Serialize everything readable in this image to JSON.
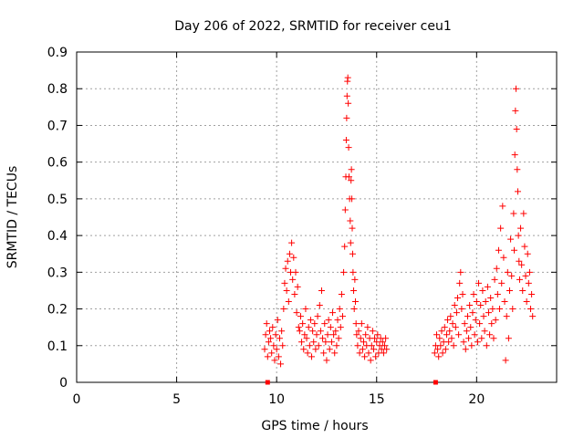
{
  "chart_data": {
    "type": "scatter",
    "title": "Day 206 of 2022, SRMTID for receiver ceu1",
    "xlabel": "GPS time / hours",
    "ylabel": "SRMTID / TECUs",
    "xlim": [
      0,
      24
    ],
    "ylim": [
      0,
      0.9
    ],
    "xticks": [
      "0",
      "5",
      "10",
      "15",
      "20"
    ],
    "yticks": [
      "0",
      "0.1",
      "0.2",
      "0.3",
      "0.4",
      "0.5",
      "0.6",
      "0.7",
      "0.8",
      "0.9"
    ],
    "grid": true,
    "marker_color": "#ff0000",
    "axis_markers": [
      {
        "x": 9.55,
        "y": 0
      },
      {
        "x": 17.95,
        "y": 0
      }
    ],
    "series": [
      {
        "name": "SRMTID",
        "marker": "plus",
        "points": [
          [
            9.4,
            0.09
          ],
          [
            9.45,
            0.13
          ],
          [
            9.5,
            0.16
          ],
          [
            9.55,
            0.07
          ],
          [
            9.6,
            0.11
          ],
          [
            9.65,
            0.14
          ],
          [
            9.7,
            0.12
          ],
          [
            9.75,
            0.08
          ],
          [
            9.8,
            0.15
          ],
          [
            9.85,
            0.1
          ],
          [
            9.9,
            0.06
          ],
          [
            9.95,
            0.13
          ],
          [
            10.0,
            0.09
          ],
          [
            10.05,
            0.17
          ],
          [
            10.1,
            0.07
          ],
          [
            10.15,
            0.12
          ],
          [
            10.2,
            0.05
          ],
          [
            10.25,
            0.14
          ],
          [
            10.3,
            0.1
          ],
          [
            10.35,
            0.2
          ],
          [
            10.4,
            0.27
          ],
          [
            10.45,
            0.31
          ],
          [
            10.5,
            0.25
          ],
          [
            10.55,
            0.33
          ],
          [
            10.6,
            0.22
          ],
          [
            10.65,
            0.35
          ],
          [
            10.7,
            0.3
          ],
          [
            10.75,
            0.38
          ],
          [
            10.8,
            0.28
          ],
          [
            10.85,
            0.34
          ],
          [
            10.9,
            0.24
          ],
          [
            10.95,
            0.3
          ],
          [
            11.0,
            0.19
          ],
          [
            11.05,
            0.26
          ],
          [
            11.1,
            0.15
          ],
          [
            11.15,
            0.14
          ],
          [
            11.2,
            0.18
          ],
          [
            11.25,
            0.11
          ],
          [
            11.3,
            0.16
          ],
          [
            11.35,
            0.09
          ],
          [
            11.4,
            0.13
          ],
          [
            11.45,
            0.2
          ],
          [
            11.5,
            0.12
          ],
          [
            11.55,
            0.08
          ],
          [
            11.6,
            0.15
          ],
          [
            11.65,
            0.1
          ],
          [
            11.7,
            0.17
          ],
          [
            11.75,
            0.07
          ],
          [
            11.8,
            0.14
          ],
          [
            11.85,
            0.11
          ],
          [
            11.9,
            0.16
          ],
          [
            11.95,
            0.09
          ],
          [
            12.0,
            0.13
          ],
          [
            12.05,
            0.18
          ],
          [
            12.1,
            0.1
          ],
          [
            12.15,
            0.21
          ],
          [
            12.2,
            0.14
          ],
          [
            12.25,
            0.25
          ],
          [
            12.3,
            0.12
          ],
          [
            12.35,
            0.08
          ],
          [
            12.4,
            0.16
          ],
          [
            12.45,
            0.11
          ],
          [
            12.5,
            0.06
          ],
          [
            12.55,
            0.13
          ],
          [
            12.6,
            0.17
          ],
          [
            12.65,
            0.09
          ],
          [
            12.7,
            0.15
          ],
          [
            12.75,
            0.11
          ],
          [
            12.8,
            0.19
          ],
          [
            12.85,
            0.13
          ],
          [
            12.9,
            0.08
          ],
          [
            12.95,
            0.14
          ],
          [
            13.0,
            0.1
          ],
          [
            13.05,
            0.17
          ],
          [
            13.1,
            0.12
          ],
          [
            13.15,
            0.2
          ],
          [
            13.2,
            0.15
          ],
          [
            13.25,
            0.24
          ],
          [
            13.3,
            0.18
          ],
          [
            13.35,
            0.3
          ],
          [
            13.4,
            0.37
          ],
          [
            13.43,
            0.47
          ],
          [
            13.46,
            0.56
          ],
          [
            13.48,
            0.66
          ],
          [
            13.5,
            0.72
          ],
          [
            13.52,
            0.78
          ],
          [
            13.54,
            0.82
          ],
          [
            13.56,
            0.83
          ],
          [
            13.58,
            0.76
          ],
          [
            13.6,
            0.64
          ],
          [
            13.62,
            0.56
          ],
          [
            13.65,
            0.5
          ],
          [
            13.68,
            0.44
          ],
          [
            13.7,
            0.38
          ],
          [
            13.72,
            0.55
          ],
          [
            13.74,
            0.58
          ],
          [
            13.76,
            0.5
          ],
          [
            13.78,
            0.42
          ],
          [
            13.8,
            0.35
          ],
          [
            13.82,
            0.3
          ],
          [
            13.85,
            0.25
          ],
          [
            13.88,
            0.2
          ],
          [
            13.91,
            0.28
          ],
          [
            13.94,
            0.22
          ],
          [
            13.97,
            0.16
          ],
          [
            14.0,
            0.13
          ],
          [
            14.05,
            0.1
          ],
          [
            14.1,
            0.14
          ],
          [
            14.15,
            0.08
          ],
          [
            14.2,
            0.12
          ],
          [
            14.25,
            0.16
          ],
          [
            14.3,
            0.09
          ],
          [
            14.35,
            0.11
          ],
          [
            14.4,
            0.07
          ],
          [
            14.45,
            0.13
          ],
          [
            14.5,
            0.1
          ],
          [
            14.55,
            0.15
          ],
          [
            14.6,
            0.08
          ],
          [
            14.65,
            0.12
          ],
          [
            14.7,
            0.06
          ],
          [
            14.75,
            0.1
          ],
          [
            14.8,
            0.14
          ],
          [
            14.85,
            0.09
          ],
          [
            14.9,
            0.12
          ],
          [
            14.95,
            0.07
          ],
          [
            15.0,
            0.11
          ],
          [
            15.05,
            0.13
          ],
          [
            15.1,
            0.08
          ],
          [
            15.15,
            0.1
          ],
          [
            15.2,
            0.12
          ],
          [
            15.25,
            0.09
          ],
          [
            15.3,
            0.11
          ],
          [
            15.35,
            0.08
          ],
          [
            15.4,
            0.1
          ],
          [
            15.45,
            0.12
          ],
          [
            15.5,
            0.09
          ],
          [
            17.9,
            0.08
          ],
          [
            17.95,
            0.1
          ],
          [
            18.0,
            0.13
          ],
          [
            18.05,
            0.09
          ],
          [
            18.1,
            0.07
          ],
          [
            18.15,
            0.12
          ],
          [
            18.2,
            0.1
          ],
          [
            18.25,
            0.14
          ],
          [
            18.3,
            0.08
          ],
          [
            18.35,
            0.11
          ],
          [
            18.4,
            0.15
          ],
          [
            18.45,
            0.09
          ],
          [
            18.5,
            0.13
          ],
          [
            18.55,
            0.17
          ],
          [
            18.6,
            0.11
          ],
          [
            18.65,
            0.14
          ],
          [
            18.7,
            0.18
          ],
          [
            18.75,
            0.12
          ],
          [
            18.8,
            0.16
          ],
          [
            18.85,
            0.1
          ],
          [
            18.9,
            0.21
          ],
          [
            18.95,
            0.15
          ],
          [
            19.0,
            0.19
          ],
          [
            19.05,
            0.23
          ],
          [
            19.1,
            0.13
          ],
          [
            19.15,
            0.27
          ],
          [
            19.2,
            0.3
          ],
          [
            19.25,
            0.2
          ],
          [
            19.3,
            0.24
          ],
          [
            19.35,
            0.11
          ],
          [
            19.4,
            0.16
          ],
          [
            19.45,
            0.09
          ],
          [
            19.5,
            0.14
          ],
          [
            19.55,
            0.18
          ],
          [
            19.6,
            0.12
          ],
          [
            19.65,
            0.21
          ],
          [
            19.7,
            0.15
          ],
          [
            19.75,
            0.1
          ],
          [
            19.8,
            0.19
          ],
          [
            19.85,
            0.24
          ],
          [
            19.9,
            0.13
          ],
          [
            19.95,
            0.17
          ],
          [
            20.0,
            0.22
          ],
          [
            20.05,
            0.11
          ],
          [
            20.1,
            0.27
          ],
          [
            20.15,
            0.16
          ],
          [
            20.2,
            0.21
          ],
          [
            20.25,
            0.12
          ],
          [
            20.3,
            0.25
          ],
          [
            20.35,
            0.18
          ],
          [
            20.4,
            0.14
          ],
          [
            20.45,
            0.22
          ],
          [
            20.5,
            0.1
          ],
          [
            20.55,
            0.26
          ],
          [
            20.6,
            0.19
          ],
          [
            20.65,
            0.13
          ],
          [
            20.7,
            0.23
          ],
          [
            20.75,
            0.16
          ],
          [
            20.8,
            0.2
          ],
          [
            20.85,
            0.12
          ],
          [
            20.9,
            0.28
          ],
          [
            20.95,
            0.17
          ],
          [
            21.0,
            0.31
          ],
          [
            21.05,
            0.24
          ],
          [
            21.1,
            0.36
          ],
          [
            21.15,
            0.2
          ],
          [
            21.2,
            0.42
          ],
          [
            21.25,
            0.27
          ],
          [
            21.3,
            0.48
          ],
          [
            21.35,
            0.34
          ],
          [
            21.4,
            0.22
          ],
          [
            21.45,
            0.06
          ],
          [
            21.5,
            0.18
          ],
          [
            21.55,
            0.3
          ],
          [
            21.6,
            0.12
          ],
          [
            21.65,
            0.25
          ],
          [
            21.7,
            0.39
          ],
          [
            21.75,
            0.29
          ],
          [
            21.8,
            0.2
          ],
          [
            21.85,
            0.46
          ],
          [
            21.88,
            0.36
          ],
          [
            21.91,
            0.62
          ],
          [
            21.94,
            0.74
          ],
          [
            21.97,
            0.8
          ],
          [
            22.0,
            0.69
          ],
          [
            22.03,
            0.58
          ],
          [
            22.06,
            0.52
          ],
          [
            22.09,
            0.4
          ],
          [
            22.12,
            0.33
          ],
          [
            22.15,
            0.28
          ],
          [
            22.2,
            0.42
          ],
          [
            22.25,
            0.32
          ],
          [
            22.3,
            0.25
          ],
          [
            22.35,
            0.46
          ],
          [
            22.4,
            0.37
          ],
          [
            22.45,
            0.29
          ],
          [
            22.5,
            0.22
          ],
          [
            22.55,
            0.35
          ],
          [
            22.6,
            0.27
          ],
          [
            22.65,
            0.3
          ],
          [
            22.7,
            0.2
          ],
          [
            22.75,
            0.24
          ],
          [
            22.8,
            0.18
          ]
        ]
      }
    ]
  }
}
